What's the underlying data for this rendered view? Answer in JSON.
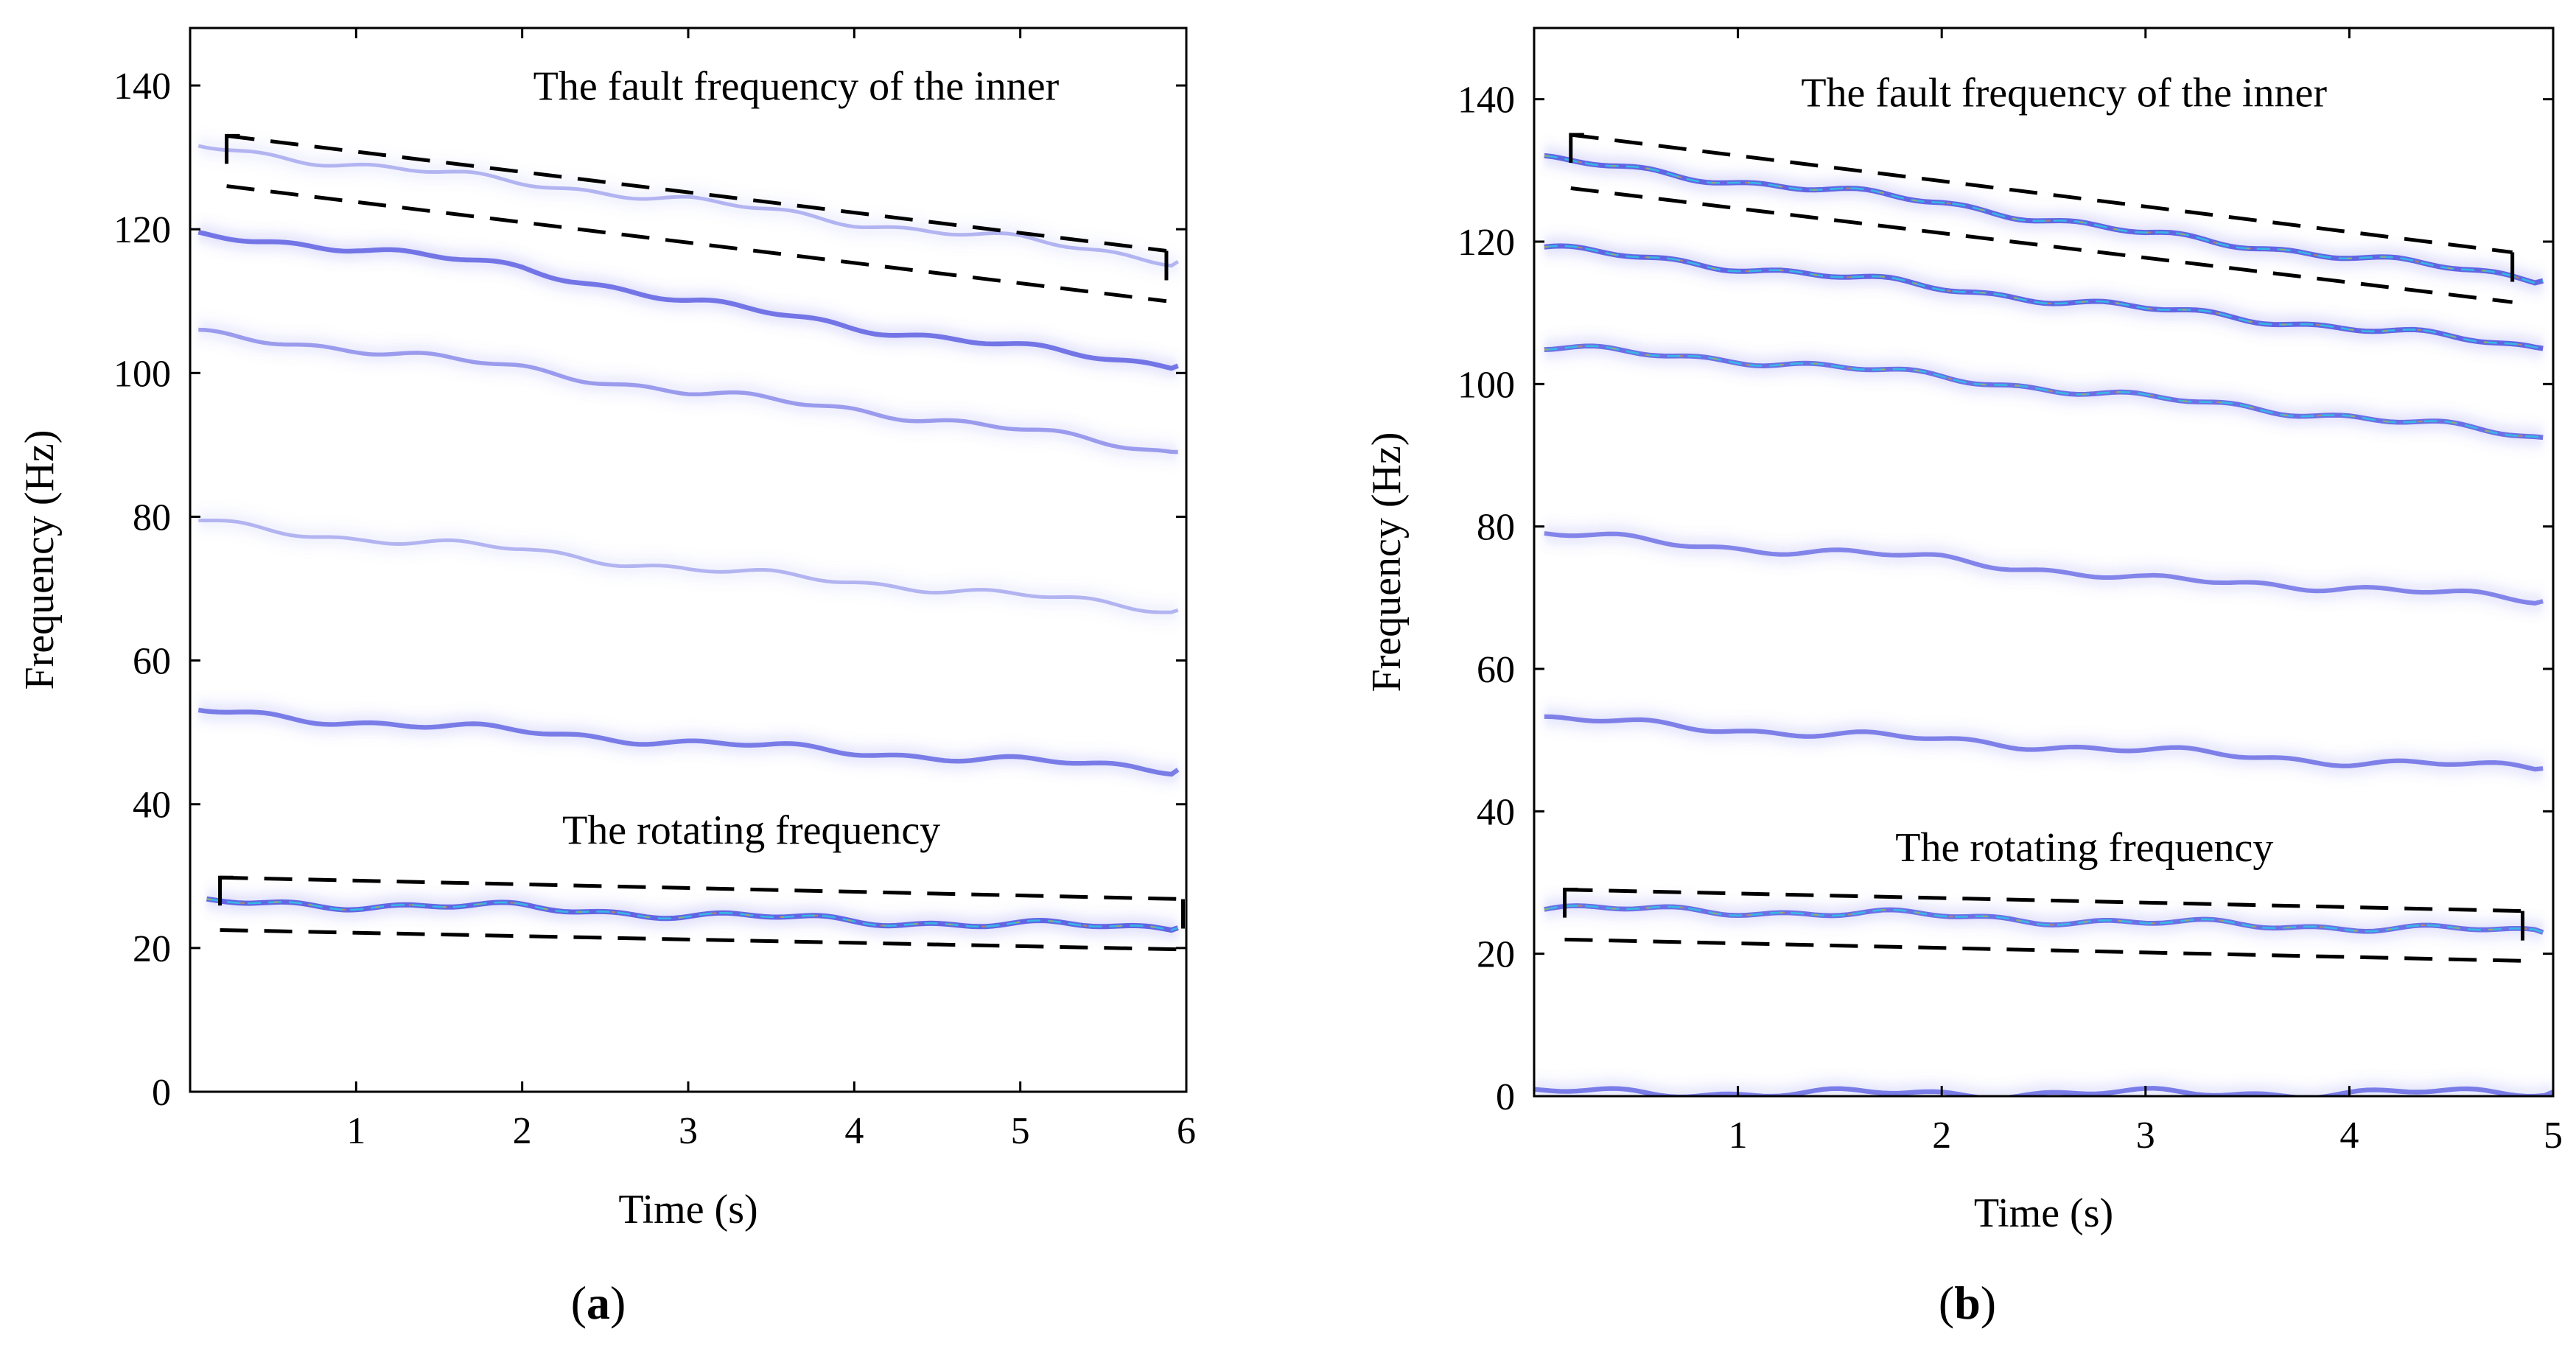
{
  "figure": {
    "caption_parts": [
      [
        "(",
        "a",
        ")"
      ],
      [
        "(",
        "b",
        ")"
      ]
    ]
  },
  "chart_data": [
    {
      "type": "heatmap",
      "panel_label": "a",
      "xlabel": "Time (s)",
      "ylabel": "Frequency (Hz)",
      "xlim": [
        0,
        6
      ],
      "ylim": [
        0,
        148
      ],
      "xticks": [
        1,
        2,
        3,
        4,
        5,
        6
      ],
      "yticks": [
        0,
        20,
        40,
        60,
        80,
        100,
        120,
        140
      ],
      "ridges": [
        {
          "name": "rotating",
          "x": [
            0.1,
            1,
            2,
            3,
            4,
            5,
            5.95
          ],
          "y": [
            26.3,
            26.0,
            25.6,
            24.6,
            23.8,
            23.2,
            22.8
          ],
          "strength": 1.0
        },
        {
          "name": "harmonic-2",
          "x": [
            0.05,
            1,
            2,
            3,
            4,
            5,
            5.95
          ],
          "y": [
            52.9,
            51.5,
            50.1,
            48.6,
            47.3,
            46.0,
            44.8
          ],
          "strength": 0.8
        },
        {
          "name": "harmonic-3",
          "x": [
            0.05,
            1,
            2,
            3,
            4,
            5,
            5.95
          ],
          "y": [
            79.3,
            77.0,
            75.4,
            72.7,
            71.0,
            69.0,
            67.0
          ],
          "strength": 0.3
        },
        {
          "name": "harmonic-4",
          "x": [
            0.05,
            1,
            2,
            3,
            4,
            5,
            5.95
          ],
          "y": [
            105.4,
            103.4,
            100.6,
            97.3,
            95.0,
            92.0,
            89.0
          ],
          "strength": 0.5
        },
        {
          "name": "sideband",
          "x": [
            0.05,
            1,
            2,
            3,
            4,
            5,
            5.95
          ],
          "y": [
            119.0,
            117.5,
            114.5,
            110.0,
            106.5,
            103.5,
            101.0
          ],
          "strength": 0.85
        },
        {
          "name": "inner-fault",
          "x": [
            0.05,
            1,
            2,
            3,
            4,
            5,
            5.95
          ],
          "y": [
            131.5,
            129.0,
            126.5,
            124.0,
            121.0,
            118.5,
            115.5
          ],
          "strength": 0.3
        }
      ],
      "annotations": [
        {
          "text": "The fault frequency of the inner",
          "x": 3.65,
          "y": 138
        },
        {
          "text": "The rotating frequency",
          "x": 3.38,
          "y": 34.5
        }
      ],
      "boxes": [
        {
          "name": "inner-fault-box",
          "upper": [
            [
              0.22,
              133.0
            ],
            [
              5.88,
              117.0
            ]
          ],
          "lower": [
            [
              0.22,
              126.0
            ],
            [
              5.88,
              110.0
            ]
          ]
        },
        {
          "name": "rotating-box",
          "upper": [
            [
              0.18,
              29.8
            ],
            [
              5.98,
              26.8
            ]
          ],
          "lower": [
            [
              0.18,
              22.5
            ],
            [
              5.98,
              19.8
            ]
          ]
        }
      ]
    },
    {
      "type": "heatmap",
      "panel_label": "b",
      "xlabel": "Time (s)",
      "ylabel": "Frequency (Hz)",
      "xlim": [
        0,
        5
      ],
      "ylim": [
        0,
        150
      ],
      "xticks": [
        1,
        2,
        3,
        4,
        5
      ],
      "yticks": [
        0,
        20,
        40,
        60,
        80,
        100,
        120,
        140
      ],
      "ridges": [
        {
          "name": "rotating",
          "x": [
            0.05,
            1,
            2,
            3,
            4,
            4.95
          ],
          "y": [
            26.3,
            26.0,
            25.3,
            24.3,
            23.8,
            23.0
          ],
          "strength": 0.9
        },
        {
          "name": "harmonic-2",
          "x": [
            0.05,
            1,
            2,
            3,
            4,
            4.95
          ],
          "y": [
            53.0,
            51.5,
            50.0,
            48.5,
            47.0,
            46.0
          ],
          "strength": 0.75
        },
        {
          "name": "harmonic-3",
          "x": [
            0.05,
            1,
            2,
            3,
            4,
            4.95
          ],
          "y": [
            79.0,
            77.0,
            75.5,
            72.5,
            71.5,
            69.5
          ],
          "strength": 0.7
        },
        {
          "name": "harmonic-4",
          "x": [
            0.05,
            1,
            2,
            3,
            4,
            4.95
          ],
          "y": [
            105.0,
            103.5,
            101.0,
            98.0,
            95.5,
            92.5
          ],
          "strength": 0.9
        },
        {
          "name": "sideband",
          "x": [
            0.05,
            1,
            2,
            3,
            4,
            4.95
          ],
          "y": [
            119.0,
            116.5,
            113.5,
            110.5,
            108.0,
            105.0
          ],
          "strength": 1.0
        },
        {
          "name": "inner-fault",
          "x": [
            0.05,
            1,
            2,
            3,
            4,
            4.95
          ],
          "y": [
            131.5,
            128.5,
            125.5,
            121.0,
            118.0,
            114.5
          ],
          "strength": 1.0
        },
        {
          "name": "zero-line",
          "x": [
            0.0,
            1,
            2,
            3,
            4,
            5.0
          ],
          "y": [
            0.6,
            0.4,
            0.4,
            0.4,
            0.4,
            0.6
          ],
          "strength": 0.8
        }
      ],
      "annotations": [
        {
          "text": "The fault frequency of the inner",
          "x": 2.6,
          "y": 139
        },
        {
          "text": "The rotating frequency",
          "x": 2.7,
          "y": 33
        }
      ],
      "boxes": [
        {
          "name": "inner-fault-box",
          "upper": [
            [
              0.18,
              135.0
            ],
            [
              4.8,
              118.5
            ]
          ],
          "lower": [
            [
              0.18,
              127.5
            ],
            [
              4.8,
              111.5
            ]
          ]
        },
        {
          "name": "rotating-box",
          "upper": [
            [
              0.15,
              29.0
            ],
            [
              4.85,
              26.0
            ]
          ],
          "lower": [
            [
              0.15,
              22.0
            ],
            [
              4.85,
              19.0
            ]
          ]
        }
      ]
    }
  ]
}
